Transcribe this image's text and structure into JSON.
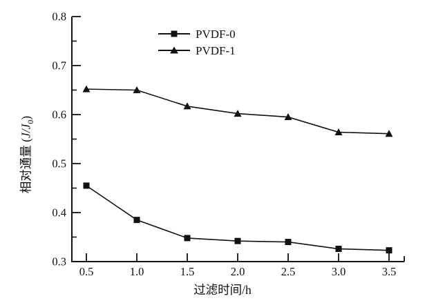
{
  "figure": {
    "background": "#ffffff",
    "line_color": "#111111"
  },
  "chart_data": {
    "type": "line",
    "title": "",
    "xlabel": "过滤时间/h",
    "ylabel": "相对通量 (J/J₀)",
    "ylabel_parts": {
      "prefix": "相对通量 (",
      "ratio": "J/J",
      "sub": "0",
      "suffix": ")"
    },
    "xlim": [
      0.36,
      3.65
    ],
    "ylim": [
      0.3,
      0.8
    ],
    "x_ticks": [
      0.5,
      1.0,
      1.5,
      2.0,
      2.5,
      3.0,
      3.5
    ],
    "x_tick_labels": [
      "0.5",
      "1.0",
      "1.5",
      "2.0",
      "2.5",
      "3.0",
      "3.5"
    ],
    "y_ticks": [
      0.3,
      0.4,
      0.5,
      0.6,
      0.7,
      0.8
    ],
    "y_tick_labels": [
      "0.3",
      "0.4",
      "0.5",
      "0.6",
      "0.7",
      "0.8"
    ],
    "y_minor_ticks": [
      0.35,
      0.45,
      0.55,
      0.65,
      0.75
    ],
    "grid": false,
    "legend_position": "upper-center-inside",
    "x": [
      0.5,
      1.0,
      1.5,
      2.0,
      2.5,
      3.0,
      3.5
    ],
    "series": [
      {
        "name": "PVDF-0",
        "marker": "square",
        "color": "#111111",
        "values": [
          0.455,
          0.385,
          0.348,
          0.342,
          0.34,
          0.326,
          0.323
        ]
      },
      {
        "name": "PVDF-1",
        "marker": "triangle",
        "color": "#111111",
        "values": [
          0.652,
          0.65,
          0.617,
          0.602,
          0.595,
          0.564,
          0.561
        ]
      }
    ]
  }
}
